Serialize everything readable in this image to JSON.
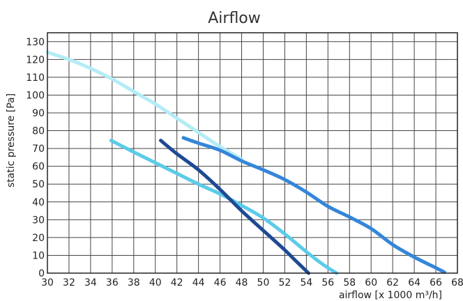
{
  "chart_data": {
    "type": "line",
    "title": "Airflow",
    "xlabel": "airflow [x 1000 m³/h]",
    "ylabel": "static pressure [Pa]",
    "xlim": [
      30,
      68
    ],
    "ylim": [
      0,
      135
    ],
    "xticks": [
      30,
      32,
      34,
      36,
      38,
      40,
      42,
      44,
      46,
      48,
      50,
      52,
      54,
      56,
      58,
      60,
      62,
      64,
      66,
      68
    ],
    "yticks": [
      0,
      10,
      20,
      30,
      40,
      50,
      60,
      70,
      80,
      90,
      100,
      110,
      120,
      130
    ],
    "grid": true,
    "legend": "none",
    "series": [
      {
        "color": "#b3ecf5",
        "x": [
          30,
          32,
          34,
          36,
          38,
          40,
          42,
          44,
          46,
          48
        ],
        "y": [
          124,
          120,
          115,
          109,
          102,
          95,
          87,
          79,
          71,
          64
        ]
      },
      {
        "color": "#5bcbe9",
        "x": [
          35.9,
          38,
          40,
          42,
          44,
          46,
          48,
          50,
          52,
          54,
          55.5,
          56.8
        ],
        "y": [
          74.5,
          68,
          62,
          56,
          50,
          44.5,
          38,
          31,
          22,
          12,
          5,
          0
        ]
      },
      {
        "color": "#1e4a94",
        "x": [
          40.5,
          42,
          44,
          46,
          48,
          50,
          52,
          53,
          54.2
        ],
        "y": [
          74.5,
          67,
          58,
          47,
          35,
          24,
          13,
          7,
          0
        ]
      },
      {
        "color": "#3586d9",
        "x": [
          42.6,
          44,
          46,
          48,
          50,
          52,
          54,
          56,
          58,
          60,
          62,
          64,
          66,
          66.8
        ],
        "y": [
          76,
          73,
          69,
          63,
          58,
          52.5,
          45.5,
          37.5,
          31.5,
          25,
          16,
          9,
          3,
          0.5
        ]
      }
    ]
  }
}
